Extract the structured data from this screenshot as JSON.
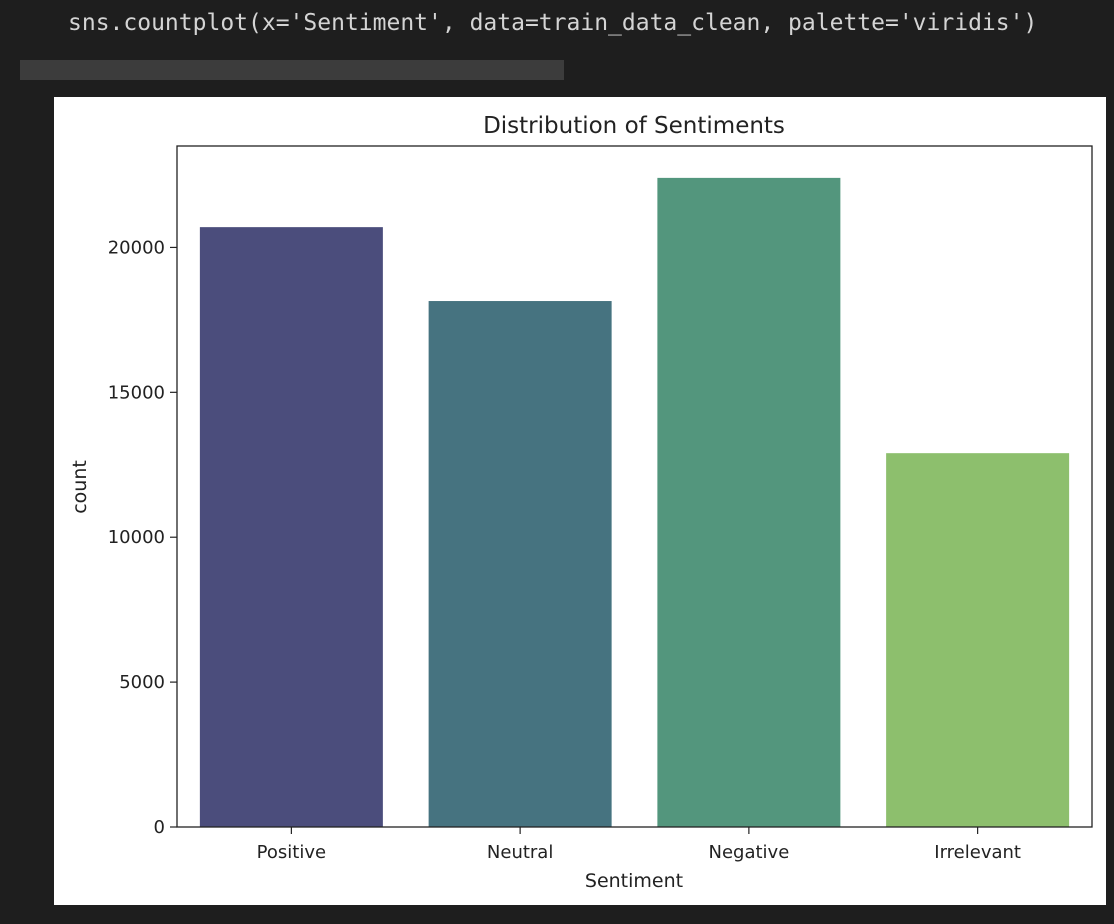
{
  "code": {
    "line": "sns.countplot(x='Sentiment', data=train_data_clean, palette='viridis')"
  },
  "chart_data": {
    "type": "bar",
    "title": "Distribution of Sentiments",
    "xlabel": "Sentiment",
    "ylabel": "count",
    "categories": [
      "Positive",
      "Neutral",
      "Negative",
      "Irrelevant"
    ],
    "values": [
      20700,
      18150,
      22400,
      12900
    ],
    "colors": [
      "#4b4d7c",
      "#467380",
      "#53967d",
      "#8dbf6d"
    ],
    "ylim": [
      0,
      23500
    ],
    "yticks": [
      0,
      5000,
      10000,
      15000,
      20000
    ],
    "grid": false,
    "legend": "none"
  }
}
